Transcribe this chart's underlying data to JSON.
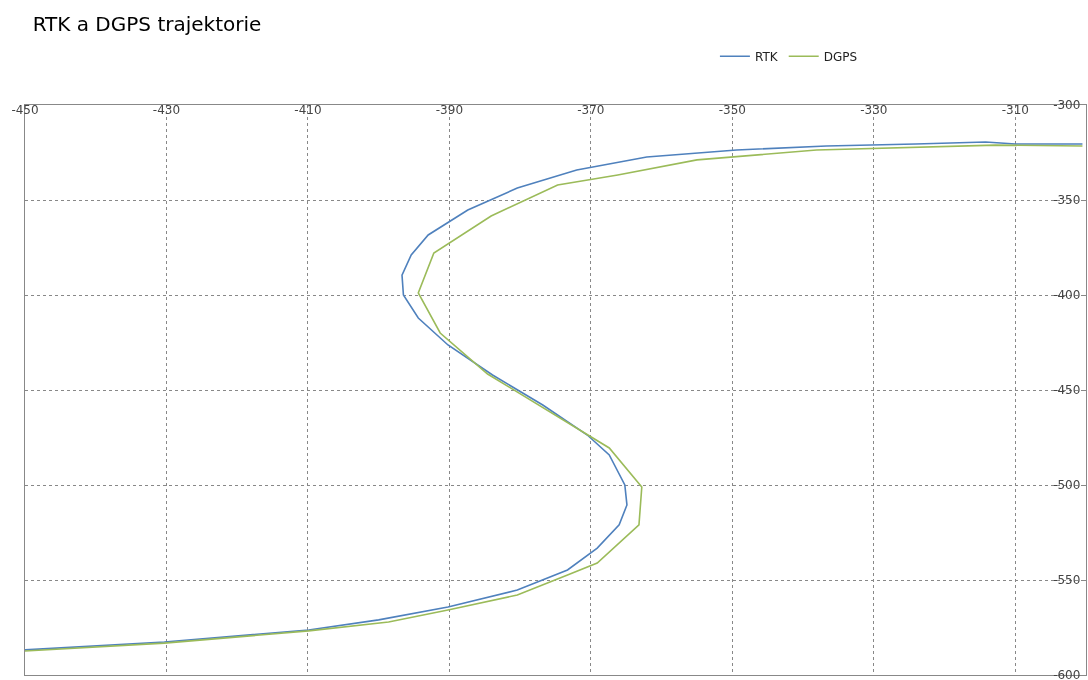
{
  "chart_data": {
    "type": "line",
    "title": "RTK a DGPS trajektorie",
    "legend": "top right",
    "grid": true,
    "marker": "none",
    "line_style": "solid",
    "xlim": [
      -450,
      -300
    ],
    "xticks": [
      -450,
      -430,
      -410,
      -390,
      -370,
      -350,
      -330,
      -310
    ],
    "ylim": [
      -600,
      -300
    ],
    "yticks": [
      -600,
      -550,
      -500,
      -450,
      -400,
      -350,
      -300
    ],
    "series": [
      {
        "name": "RTK",
        "color": "#4f81bd",
        "x": [
          -450,
          -430.3,
          -409.9,
          -400,
          -390.2,
          -380.4,
          -373.3,
          -369.1,
          -366,
          -364.9,
          -365.2,
          -367.4,
          -370.5,
          -376.8,
          -383.9,
          -390.2,
          -394.4,
          -396.5,
          -396.7,
          -395.4,
          -393,
          -387.4,
          -380.4,
          -372,
          -362.1,
          -349.4,
          -336.7,
          -324.1,
          -314.2,
          -310,
          -300.5
        ],
        "values": [
          -586.8,
          -582.6,
          -576.3,
          -571,
          -564.2,
          -555.3,
          -544.7,
          -533.2,
          -521,
          -510.5,
          -500,
          -484.2,
          -473.7,
          -457.9,
          -442.1,
          -426.3,
          -412.1,
          -400,
          -389.5,
          -378.9,
          -368.4,
          -355.3,
          -343.7,
          -334.2,
          -327.4,
          -323.7,
          -321.6,
          -320.5,
          -319.5,
          -320.5,
          -320.5
        ]
      },
      {
        "name": "DGPS",
        "color": "#9bbb59",
        "x": [
          -450,
          -430.3,
          -409.9,
          -398.6,
          -390.2,
          -380.4,
          -373.3,
          -369.1,
          -363.2,
          -362.8,
          -367.4,
          -384.6,
          -391.3,
          -394.4,
          -392.2,
          -384.1,
          -374.7,
          -366.2,
          -355,
          -338.1,
          -312.8,
          -300.5
        ],
        "values": [
          -587.4,
          -583.2,
          -576.8,
          -572.1,
          -565.8,
          -557.9,
          -547.4,
          -541.1,
          -521,
          -501.1,
          -480.5,
          -441.6,
          -420,
          -398.9,
          -377.9,
          -358.4,
          -342.1,
          -336.8,
          -328.9,
          -323.7,
          -321.1,
          -321.6
        ]
      }
    ]
  }
}
